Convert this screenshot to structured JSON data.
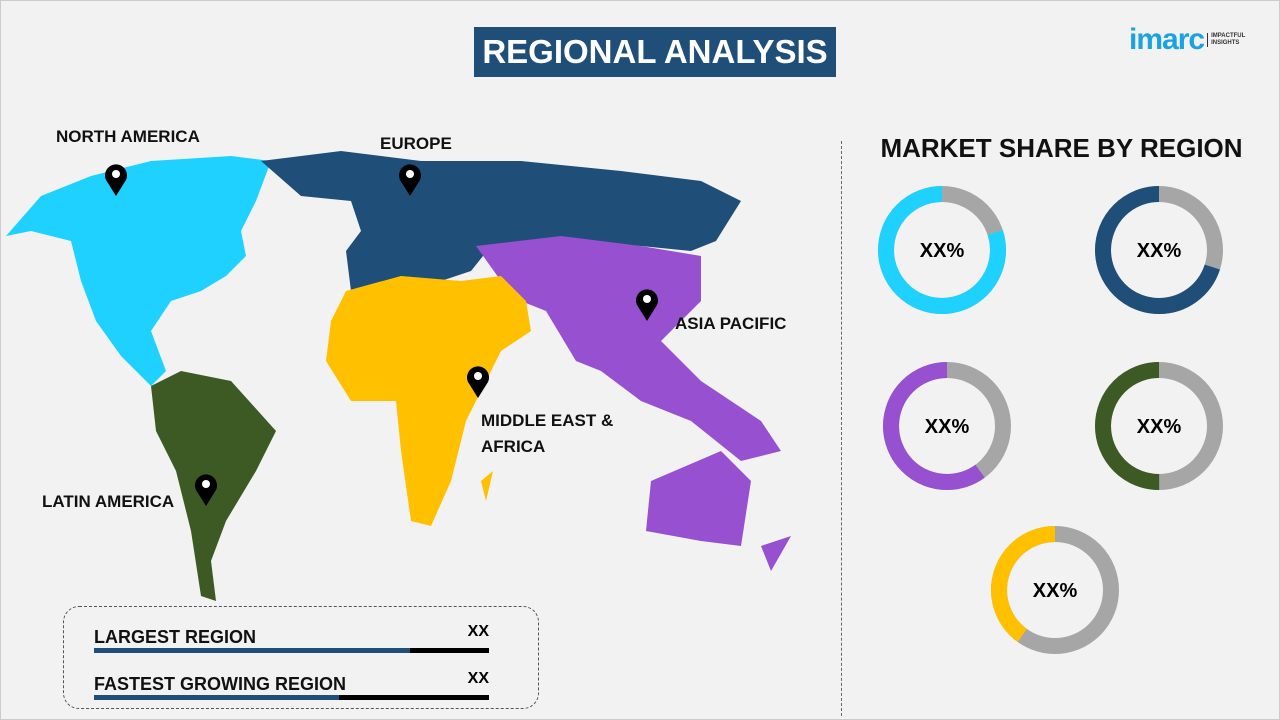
{
  "header": {
    "title": "REGIONAL ANALYSIS",
    "logo_text": "imarc",
    "logo_tagline": [
      "IMPACTFUL",
      "INSIGHTS"
    ]
  },
  "map": {
    "labels": {
      "north_america": "NORTH AMERICA",
      "europe": "EUROPE",
      "asia_pacific": "ASIA PACIFIC",
      "mea": [
        "MIDDLE EAST &",
        "AFRICA"
      ],
      "latin_america": "LATIN AMERICA"
    },
    "colors": {
      "north_america": "#1fd1ff",
      "europe": "#1f4e79",
      "asia_pacific": "#9650d0",
      "mea": "#ffc000",
      "latin_america": "#3d5a24"
    }
  },
  "summary": {
    "largest_label": "LARGEST REGION",
    "largest_value": "XX",
    "largest_fill": 0.8,
    "fastest_label": "FASTEST GROWING REGION",
    "fastest_value": "XX",
    "fastest_fill": 0.62
  },
  "chart_data": {
    "type": "donut",
    "title": "MARKET SHARE BY REGION",
    "track_color": "#a6a6a6",
    "series": [
      {
        "label": "XX%",
        "fraction": 0.8,
        "color": "#1fd1ff"
      },
      {
        "label": "XX%",
        "fraction": 0.7,
        "color": "#1f4e79"
      },
      {
        "label": "XX%",
        "fraction": 0.6,
        "color": "#9650d0"
      },
      {
        "label": "XX%",
        "fraction": 0.5,
        "color": "#3d5a24"
      },
      {
        "label": "XX%",
        "fraction": 0.4,
        "color": "#ffc000"
      }
    ]
  }
}
